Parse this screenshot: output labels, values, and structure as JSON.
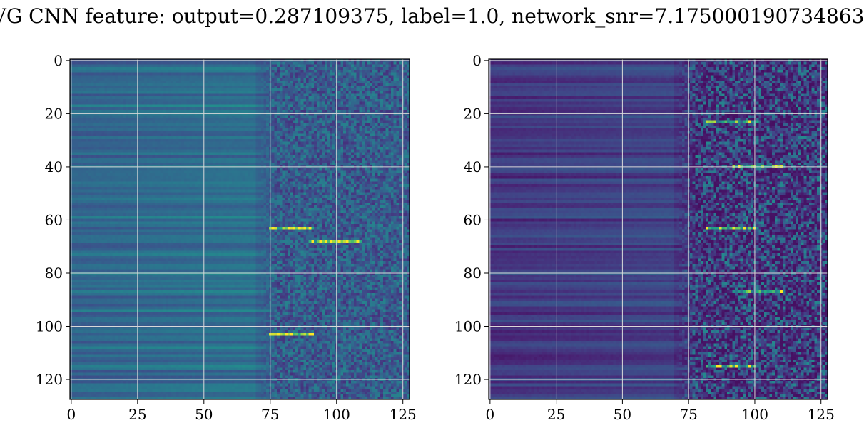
{
  "figure": {
    "title": "VG CNN feature: output=0.287109375, label=1.0, network_snr=7.175000190734863"
  },
  "chart_data": [
    {
      "type": "heatmap",
      "colormap": "viridis",
      "grid": true,
      "rows": 128,
      "cols": 128,
      "xlim": [
        -0.5,
        127.5
      ],
      "ylim": [
        127.5,
        -0.5
      ],
      "xticks": [
        0,
        25,
        50,
        75,
        100,
        125
      ],
      "yticks": [
        0,
        20,
        40,
        60,
        80,
        100,
        120
      ],
      "xtick_labels": [
        "0",
        "25",
        "50",
        "75",
        "100",
        "125"
      ],
      "ytick_labels": [
        "0",
        "20",
        "40",
        "60",
        "80",
        "100",
        "120"
      ],
      "value_profile": "columns 0-70 smooth row-wise bands at low-mid intensity; columns 75-127 noisy with bright spots",
      "bright_rows": [
        63,
        68,
        103
      ],
      "bright_cols": [
        78,
        96
      ]
    },
    {
      "type": "heatmap",
      "colormap": "viridis",
      "grid": true,
      "rows": 128,
      "cols": 128,
      "xlim": [
        -0.5,
        127.5
      ],
      "ylim": [
        127.5,
        -0.5
      ],
      "xticks": [
        0,
        25,
        50,
        75,
        100,
        125
      ],
      "yticks": [
        0,
        20,
        40,
        60,
        80,
        100,
        120
      ],
      "xtick_labels": [
        "0",
        "25",
        "50",
        "75",
        "100",
        "125"
      ],
      "ytick_labels": [
        "0",
        "20",
        "40",
        "60",
        "80",
        "100",
        "120"
      ],
      "value_profile": "columns 0-70 dark row-wise bands; columns 75-127 noisy speckle with sparse bright points",
      "bright_rows": [
        23,
        40,
        63,
        87,
        115
      ],
      "bright_cols": [
        88,
        98
      ]
    }
  ],
  "colors": {
    "grid": "#d9d9d9",
    "axis": "#000000"
  }
}
